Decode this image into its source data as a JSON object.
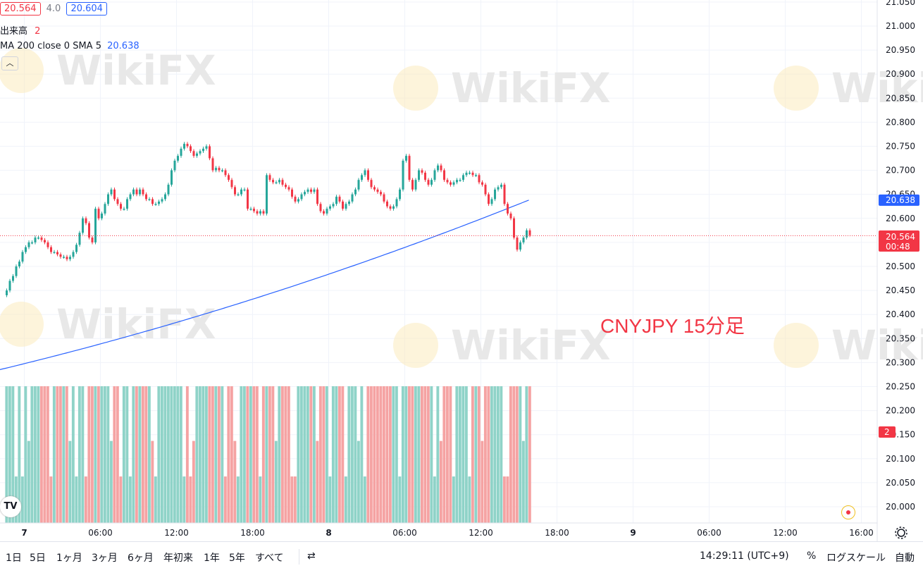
{
  "legend": {
    "ohlc_value": "20.564",
    "spread": "4.0",
    "ask_value": "20.604",
    "volume_label": "出来高",
    "volume_value": "2",
    "ma_label": "MA 200 close 0 SMA 5",
    "ma_value": "20.638"
  },
  "watermark_text": "WikiFX",
  "annotation": "CNYJPY 15分足",
  "price_badge": {
    "value": "20.564",
    "countdown": "00:48"
  },
  "ma_badge": "20.638",
  "volume_badge": "2",
  "toolbar": {
    "timeframes": [
      "1日",
      "5日",
      "1ヶ月",
      "3ヶ月",
      "6ヶ月",
      "年初来",
      "1年",
      "5年",
      "すべて"
    ],
    "time": "14:29:11 (UTC+9)",
    "percent": "%",
    "log_scale": "ログスケール",
    "auto": "自動"
  },
  "colors": {
    "up": "#26a69a",
    "down": "#f23645",
    "ma": "#2962ff",
    "vol_up": "#8fd3c8",
    "vol_down": "#f5a3a3"
  },
  "chart_data": {
    "type": "candlestick",
    "symbol": "CNYJPY",
    "interval": "15分足",
    "y_ticks": [
      "20.000",
      "20.050",
      "20.100",
      "20.150",
      "20.200",
      "20.250",
      "20.300",
      "20.350",
      "20.400",
      "20.450",
      "20.500",
      "20.550",
      "20.600",
      "20.650",
      "20.700",
      "20.750",
      "20.800",
      "20.850",
      "20.900",
      "20.950",
      "21.000",
      "21.050"
    ],
    "ylim": [
      19.98,
      21.05
    ],
    "x_labels": [
      "7",
      "06:00",
      "12:00",
      "18:00",
      "8",
      "06:00",
      "12:00",
      "18:00",
      "9",
      "06:00",
      "12:00",
      "16:00"
    ],
    "x_label_bar_index": [
      7,
      31,
      55,
      79,
      103,
      127,
      151,
      175,
      199,
      223,
      247,
      271
    ],
    "ma_series": {
      "name": "MA 200 close 0 SMA 5",
      "values_start": 20.285,
      "values_end": 20.638
    },
    "current_price": 20.564,
    "close_series": [
      20.45,
      20.47,
      20.48,
      20.5,
      20.51,
      20.53,
      20.54,
      20.55,
      20.55,
      20.56,
      20.56,
      20.555,
      20.55,
      20.54,
      20.53,
      20.53,
      20.525,
      20.52,
      20.52,
      20.515,
      20.52,
      20.53,
      20.545,
      20.57,
      20.6,
      20.59,
      20.56,
      20.55,
      20.62,
      20.6,
      20.61,
      20.63,
      20.65,
      20.66,
      20.64,
      20.63,
      20.62,
      20.62,
      20.64,
      20.65,
      20.66,
      20.65,
      20.66,
      20.65,
      20.64,
      20.64,
      20.63,
      20.63,
      20.635,
      20.64,
      20.65,
      20.67,
      20.7,
      20.72,
      20.73,
      20.745,
      20.755,
      20.75,
      20.74,
      20.73,
      20.735,
      20.74,
      20.745,
      20.75,
      20.725,
      20.7,
      20.705,
      20.7,
      20.7,
      20.69,
      20.68,
      20.665,
      20.65,
      20.65,
      20.66,
      20.66,
      20.62,
      20.62,
      20.615,
      20.61,
      20.615,
      20.61,
      20.69,
      20.68,
      20.675,
      20.675,
      20.68,
      20.67,
      20.665,
      20.66,
      20.645,
      20.635,
      20.64,
      20.65,
      20.655,
      20.66,
      20.655,
      20.66,
      20.63,
      20.615,
      20.61,
      20.62,
      20.625,
      20.63,
      20.645,
      20.635,
      20.62,
      20.63,
      20.635,
      20.65,
      20.66,
      20.68,
      20.69,
      20.7,
      20.68,
      20.665,
      20.66,
      20.655,
      20.65,
      20.635,
      20.625,
      20.62,
      20.625,
      20.64,
      20.66,
      20.72,
      20.73,
      20.68,
      20.66,
      20.68,
      20.7,
      20.695,
      20.68,
      20.67,
      20.68,
      20.7,
      20.71,
      20.7,
      20.68,
      20.675,
      20.67,
      20.675,
      20.68,
      20.68,
      20.69,
      20.695,
      20.695,
      20.69,
      20.69,
      20.675,
      20.67,
      20.65,
      20.63,
      20.64,
      20.66,
      20.665,
      20.67,
      20.63,
      20.61,
      20.6,
      20.56,
      20.535,
      20.55,
      20.56,
      20.575,
      20.565
    ]
  }
}
